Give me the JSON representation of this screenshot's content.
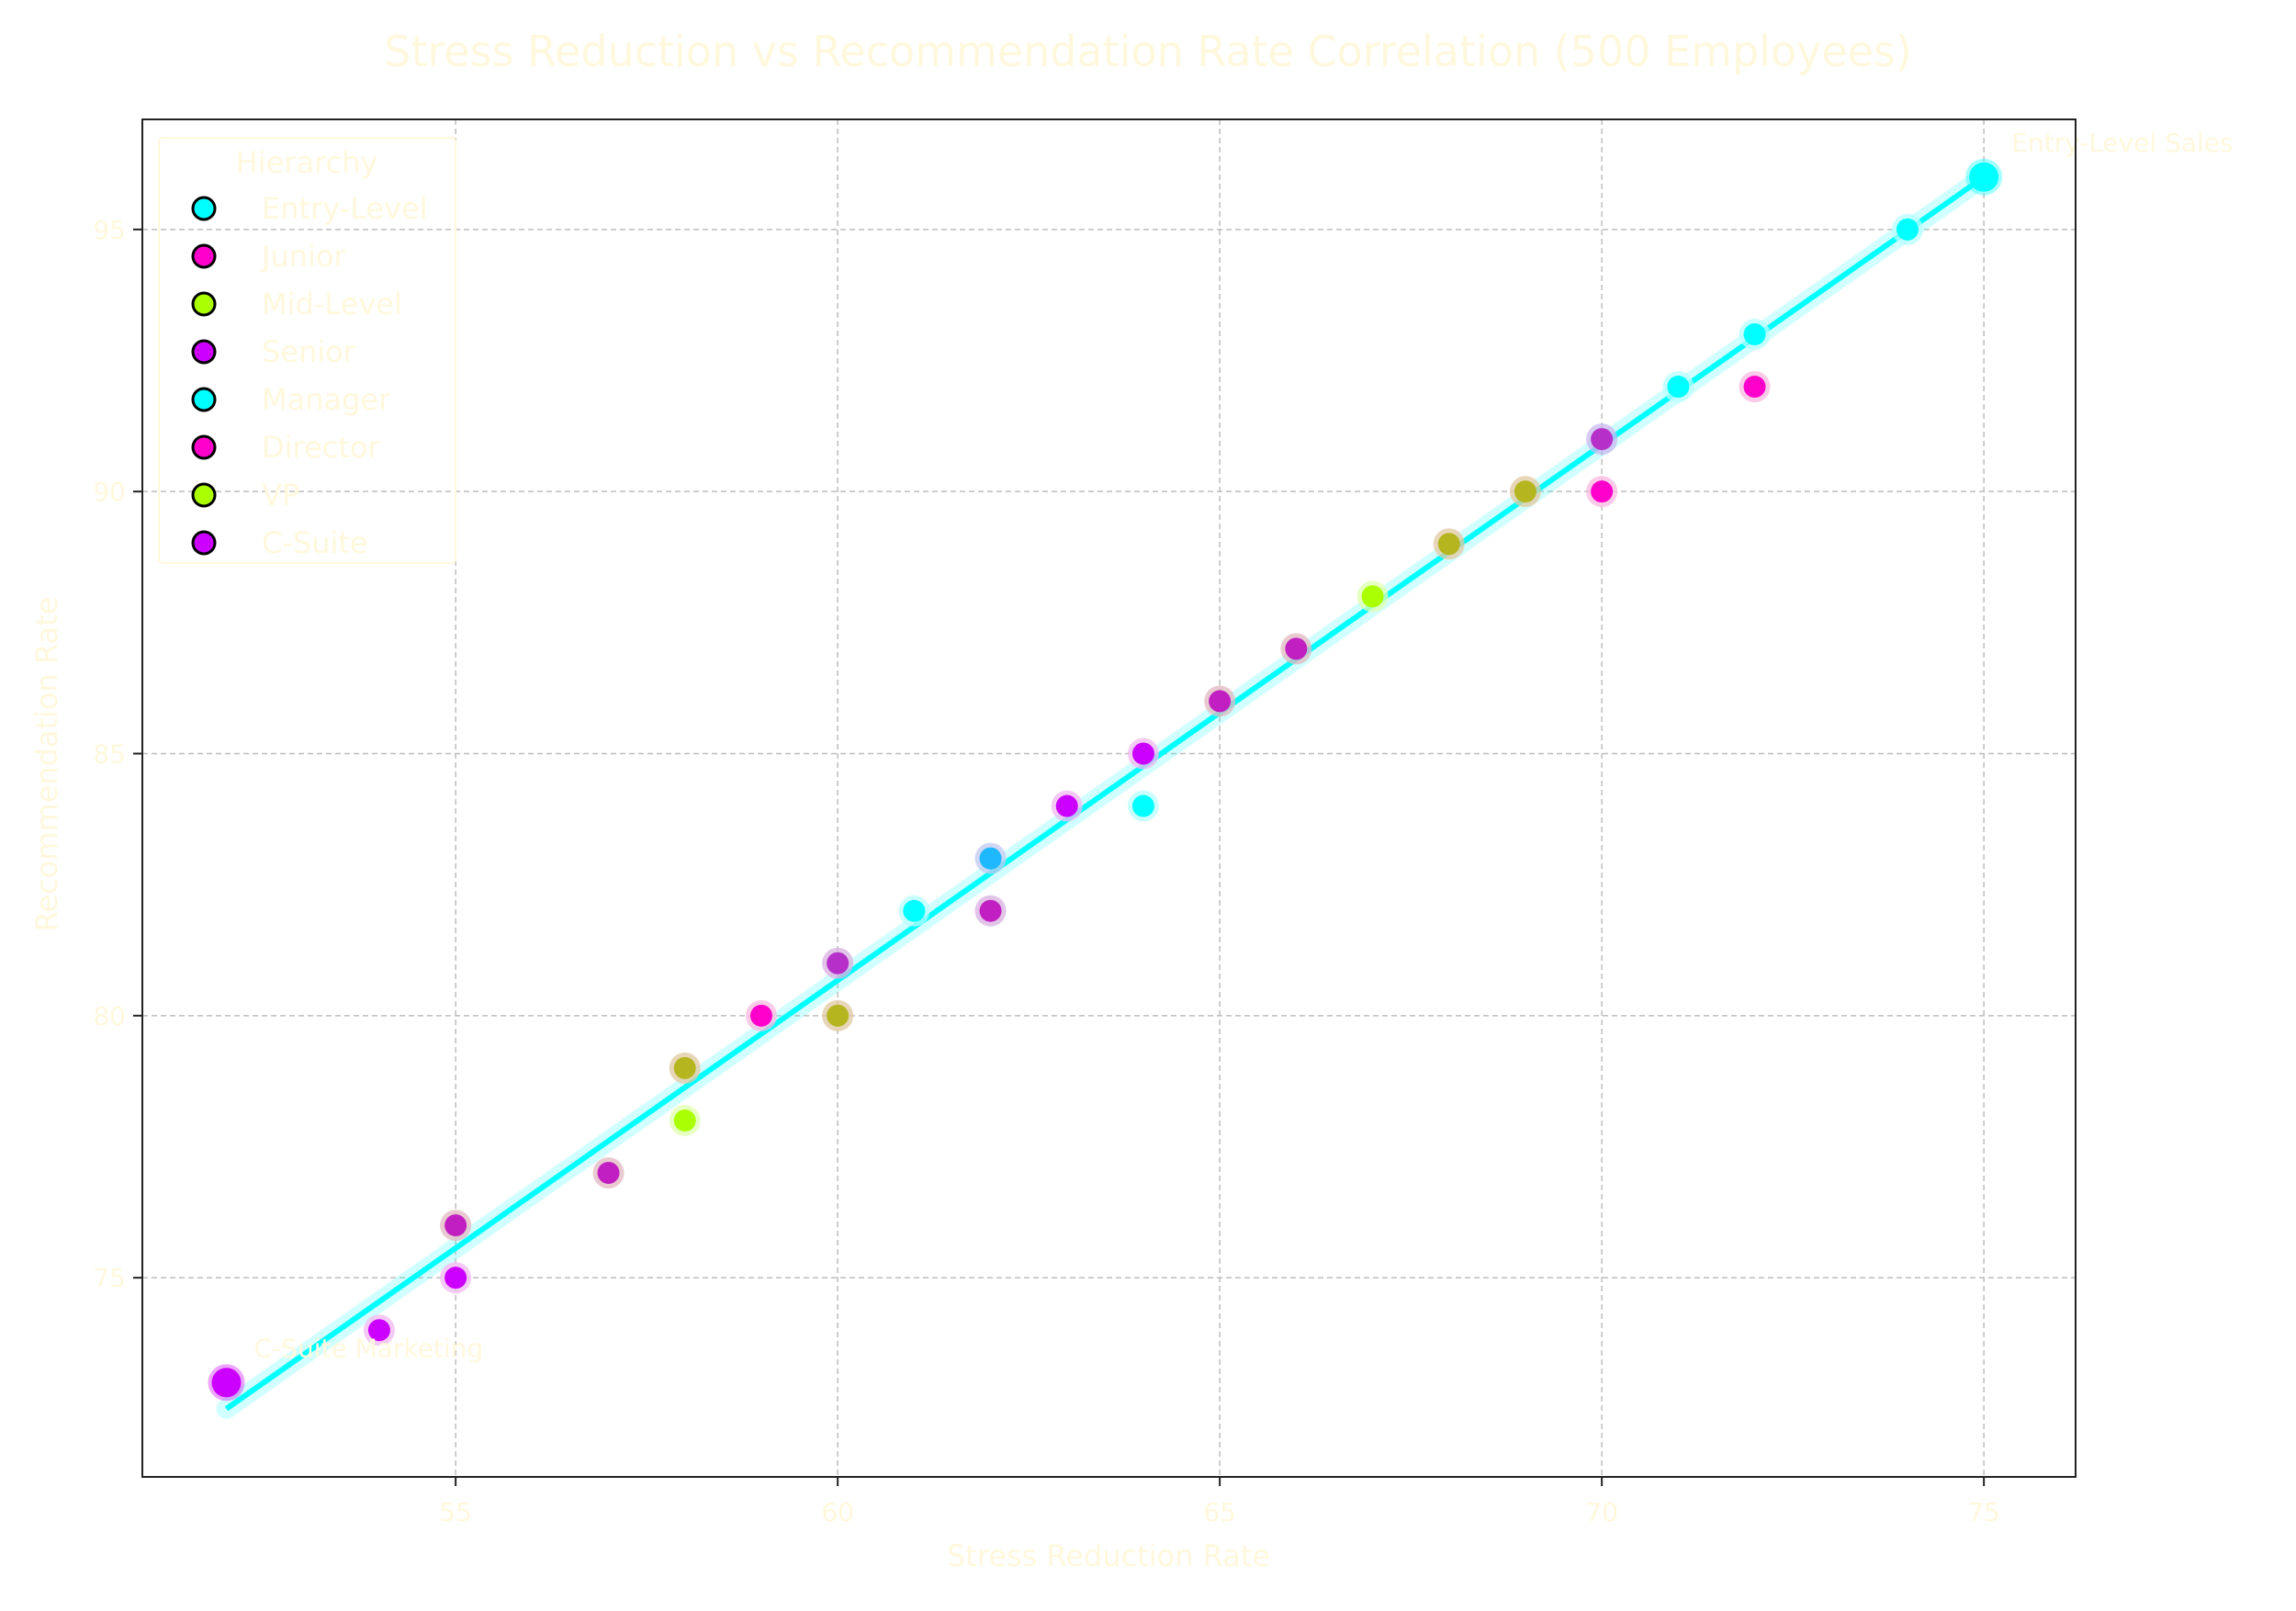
{
  "theme": {
    "text_color": "#fff8dc",
    "fit_line_color": "#00ffff",
    "grid_color": "#bdbdbd",
    "axis_color": "#222222"
  },
  "chart_data": {
    "type": "scatter",
    "title": "Stress Reduction vs Recommendation Rate Correlation (500 Employees)",
    "xlabel": "Stress Reduction Rate",
    "ylabel": "Recommendation Rate",
    "xlim": [
      50.9,
      76.2
    ],
    "ylim": [
      71.2,
      97.1
    ],
    "xticks": [
      55,
      60,
      65,
      70,
      75
    ],
    "yticks": [
      75,
      80,
      85,
      90,
      95
    ],
    "grid": true,
    "legend": {
      "title": "Hierarchy",
      "placement": "top-left",
      "entries": [
        {
          "label": "Entry-Level",
          "color": "#00ffff"
        },
        {
          "label": "Junior",
          "color": "#ff00cc"
        },
        {
          "label": "Mid-Level",
          "color": "#aaff00"
        },
        {
          "label": "Senior",
          "color": "#cc00ff"
        },
        {
          "label": "Manager",
          "color": "#00ffff"
        },
        {
          "label": "Director",
          "color": "#ff00cc"
        },
        {
          "label": "VP",
          "color": "#aaff00"
        },
        {
          "label": "C-Suite",
          "color": "#cc00ff"
        }
      ]
    },
    "fit_line": {
      "x": [
        52,
        75
      ],
      "y": [
        72.5,
        96.0
      ]
    },
    "points": [
      {
        "x": 52,
        "y": 73,
        "color": "#cc00ff",
        "halo": "#cc00ff",
        "big": true
      },
      {
        "x": 54,
        "y": 74,
        "color": "#cc00ff",
        "halo": "#f0b8f0"
      },
      {
        "x": 55,
        "y": 75,
        "color": "#cc00ff",
        "halo": "#f0b8f0"
      },
      {
        "x": 55,
        "y": 76,
        "color": "#c21fc2",
        "halo": "#e0b8c0"
      },
      {
        "x": 57,
        "y": 77,
        "color": "#c21fc2",
        "halo": "#e0b8c0"
      },
      {
        "x": 58,
        "y": 78,
        "color": "#aaff00",
        "halo": "#e0ffb0"
      },
      {
        "x": 58,
        "y": 79,
        "color": "#b5b51f",
        "halo": "#e0c8a0"
      },
      {
        "x": 59,
        "y": 80,
        "color": "#ff00cc",
        "halo": "#f8b8e0"
      },
      {
        "x": 60,
        "y": 80,
        "color": "#b5b51f",
        "halo": "#e0c8a0"
      },
      {
        "x": 60,
        "y": 81,
        "color": "#b52fc8",
        "halo": "#d8b0e0"
      },
      {
        "x": 61,
        "y": 82,
        "color": "#00ffff",
        "halo": "#b8ffff"
      },
      {
        "x": 62,
        "y": 82,
        "color": "#c21fc2",
        "halo": "#d8b0e0"
      },
      {
        "x": 62,
        "y": 83,
        "color": "#1fb8ff",
        "halo": "#c0c8f0"
      },
      {
        "x": 63,
        "y": 84,
        "color": "#cc00ff",
        "halo": "#f0b8f0"
      },
      {
        "x": 64,
        "y": 84,
        "color": "#00ffff",
        "halo": "#b8ffff"
      },
      {
        "x": 64,
        "y": 85,
        "color": "#cc00ff",
        "halo": "#f0b8f0"
      },
      {
        "x": 65,
        "y": 86,
        "color": "#c21fc2",
        "halo": "#e0b8c0"
      },
      {
        "x": 66,
        "y": 87,
        "color": "#c21fc2",
        "halo": "#e0b8c0"
      },
      {
        "x": 67,
        "y": 88,
        "color": "#aaff00",
        "halo": "#e0ffb0"
      },
      {
        "x": 68,
        "y": 89,
        "color": "#b5b51f",
        "halo": "#e0c8a0"
      },
      {
        "x": 69,
        "y": 90,
        "color": "#b5b51f",
        "halo": "#e0c8a0"
      },
      {
        "x": 70,
        "y": 90,
        "color": "#ff00cc",
        "halo": "#f8b8e0"
      },
      {
        "x": 70,
        "y": 91,
        "color": "#b52fc8",
        "halo": "#c8b8f0"
      },
      {
        "x": 71,
        "y": 92,
        "color": "#00ffff",
        "halo": "#b8ffff"
      },
      {
        "x": 72,
        "y": 92,
        "color": "#ff00cc",
        "halo": "#f8b8e0"
      },
      {
        "x": 72,
        "y": 93,
        "color": "#00ffff",
        "halo": "#b8ffff"
      },
      {
        "x": 74,
        "y": 95,
        "color": "#00ffff",
        "halo": "#b8ffff"
      },
      {
        "x": 75,
        "y": 96,
        "color": "#00ffff",
        "halo": "#00ffff",
        "big": true
      }
    ],
    "annotations": [
      {
        "text": "Entry-Level Sales",
        "x": 75,
        "y": 96,
        "pos": "above-right"
      },
      {
        "text": "C-Suite Marketing",
        "x": 52,
        "y": 73,
        "pos": "above-right"
      }
    ]
  }
}
